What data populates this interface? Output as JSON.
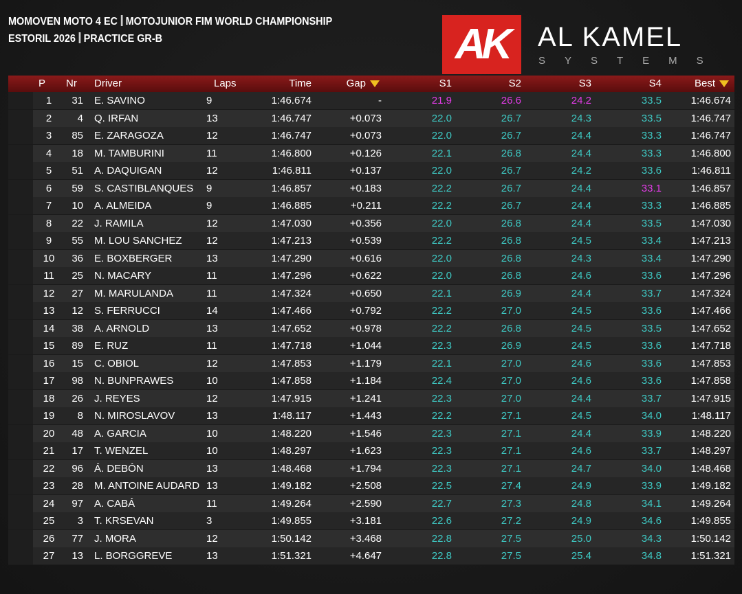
{
  "header": {
    "title": [
      "MOMOVEN MOTO 4 EC",
      "MOTOJUNIOR FIM WORLD CHAMPIONSHIP"
    ],
    "subtitle": [
      "ESTORIL 2026",
      "PRACTICE GR-B"
    ]
  },
  "logo": {
    "mark": "AK",
    "name": "AL KAMEL",
    "tagline": "SYSTEMS"
  },
  "table": {
    "columns": [
      "P",
      "Nr",
      "Driver",
      "Laps",
      "Time",
      "Gap",
      "S1",
      "S2",
      "S3",
      "S4",
      "Best"
    ],
    "rows": [
      [
        "1",
        "31",
        "E. SAVINO",
        "9",
        "1:46.674",
        "-",
        "21.9",
        "26.6",
        "24.2",
        "33.5",
        "1:46.674"
      ],
      [
        "2",
        "4",
        "Q. IRFAN",
        "13",
        "1:46.747",
        "+0.073",
        "22.0",
        "26.7",
        "24.3",
        "33.5",
        "1:46.747"
      ],
      [
        "3",
        "85",
        "E. ZARAGOZA",
        "12",
        "1:46.747",
        "+0.073",
        "22.0",
        "26.7",
        "24.4",
        "33.3",
        "1:46.747"
      ],
      [
        "4",
        "18",
        "M. TAMBURINI",
        "11",
        "1:46.800",
        "+0.126",
        "22.1",
        "26.8",
        "24.4",
        "33.3",
        "1:46.800"
      ],
      [
        "5",
        "51",
        "A. DAQUIGAN",
        "12",
        "1:46.811",
        "+0.137",
        "22.0",
        "26.7",
        "24.2",
        "33.6",
        "1:46.811"
      ],
      [
        "6",
        "59",
        "S. CASTIBLANQUES",
        "9",
        "1:46.857",
        "+0.183",
        "22.2",
        "26.7",
        "24.4",
        "33.1",
        "1:46.857"
      ],
      [
        "7",
        "10",
        "A. ALMEIDA",
        "9",
        "1:46.885",
        "+0.211",
        "22.2",
        "26.7",
        "24.4",
        "33.3",
        "1:46.885"
      ],
      [
        "8",
        "22",
        "J. RAMILA",
        "12",
        "1:47.030",
        "+0.356",
        "22.0",
        "26.8",
        "24.4",
        "33.5",
        "1:47.030"
      ],
      [
        "9",
        "55",
        "M. LOU SANCHEZ",
        "12",
        "1:47.213",
        "+0.539",
        "22.2",
        "26.8",
        "24.5",
        "33.4",
        "1:47.213"
      ],
      [
        "10",
        "36",
        "E. BOXBERGER",
        "13",
        "1:47.290",
        "+0.616",
        "22.0",
        "26.8",
        "24.3",
        "33.4",
        "1:47.290"
      ],
      [
        "11",
        "25",
        "N. MACARY",
        "11",
        "1:47.296",
        "+0.622",
        "22.0",
        "26.8",
        "24.6",
        "33.6",
        "1:47.296"
      ],
      [
        "12",
        "27",
        "M. MARULANDA",
        "11",
        "1:47.324",
        "+0.650",
        "22.1",
        "26.9",
        "24.4",
        "33.7",
        "1:47.324"
      ],
      [
        "13",
        "12",
        "S. FERRUCCI",
        "14",
        "1:47.466",
        "+0.792",
        "22.2",
        "27.0",
        "24.5",
        "33.6",
        "1:47.466"
      ],
      [
        "14",
        "38",
        "A. ARNOLD",
        "13",
        "1:47.652",
        "+0.978",
        "22.2",
        "26.8",
        "24.5",
        "33.5",
        "1:47.652"
      ],
      [
        "15",
        "89",
        "E. RUZ",
        "11",
        "1:47.718",
        "+1.044",
        "22.3",
        "26.9",
        "24.5",
        "33.6",
        "1:47.718"
      ],
      [
        "16",
        "15",
        "C. OBIOL",
        "12",
        "1:47.853",
        "+1.179",
        "22.1",
        "27.0",
        "24.6",
        "33.6",
        "1:47.853"
      ],
      [
        "17",
        "98",
        "N. BUNPRAWES",
        "10",
        "1:47.858",
        "+1.184",
        "22.4",
        "27.0",
        "24.6",
        "33.6",
        "1:47.858"
      ],
      [
        "18",
        "26",
        "J. REYES",
        "12",
        "1:47.915",
        "+1.241",
        "22.3",
        "27.0",
        "24.4",
        "33.7",
        "1:47.915"
      ],
      [
        "19",
        "8",
        "N. MIROSLAVOV",
        "13",
        "1:48.117",
        "+1.443",
        "22.2",
        "27.1",
        "24.5",
        "34.0",
        "1:48.117"
      ],
      [
        "20",
        "48",
        "A. GARCIA",
        "10",
        "1:48.220",
        "+1.546",
        "22.3",
        "27.1",
        "24.4",
        "33.9",
        "1:48.220"
      ],
      [
        "21",
        "17",
        "T. WENZEL",
        "10",
        "1:48.297",
        "+1.623",
        "22.3",
        "27.1",
        "24.6",
        "33.7",
        "1:48.297"
      ],
      [
        "22",
        "96",
        "Á. DEBÓN",
        "13",
        "1:48.468",
        "+1.794",
        "22.3",
        "27.1",
        "24.7",
        "34.0",
        "1:48.468"
      ],
      [
        "23",
        "28",
        "M. ANTOINE AUDARD",
        "13",
        "1:49.182",
        "+2.508",
        "22.5",
        "27.4",
        "24.9",
        "33.9",
        "1:49.182"
      ],
      [
        "24",
        "97",
        "A. CABÁ",
        "11",
        "1:49.264",
        "+2.590",
        "22.7",
        "27.3",
        "24.8",
        "34.1",
        "1:49.264"
      ],
      [
        "25",
        "3",
        "T. KRSEVAN",
        "3",
        "1:49.855",
        "+3.181",
        "22.6",
        "27.2",
        "24.9",
        "34.6",
        "1:49.855"
      ],
      [
        "26",
        "77",
        "J. MORA",
        "12",
        "1:50.142",
        "+3.468",
        "22.8",
        "27.5",
        "25.0",
        "34.3",
        "1:50.142"
      ],
      [
        "27",
        "13",
        "L. BORGGREVE",
        "13",
        "1:51.321",
        "+4.647",
        "22.8",
        "27.5",
        "25.4",
        "34.8",
        "1:51.321"
      ]
    ]
  }
}
